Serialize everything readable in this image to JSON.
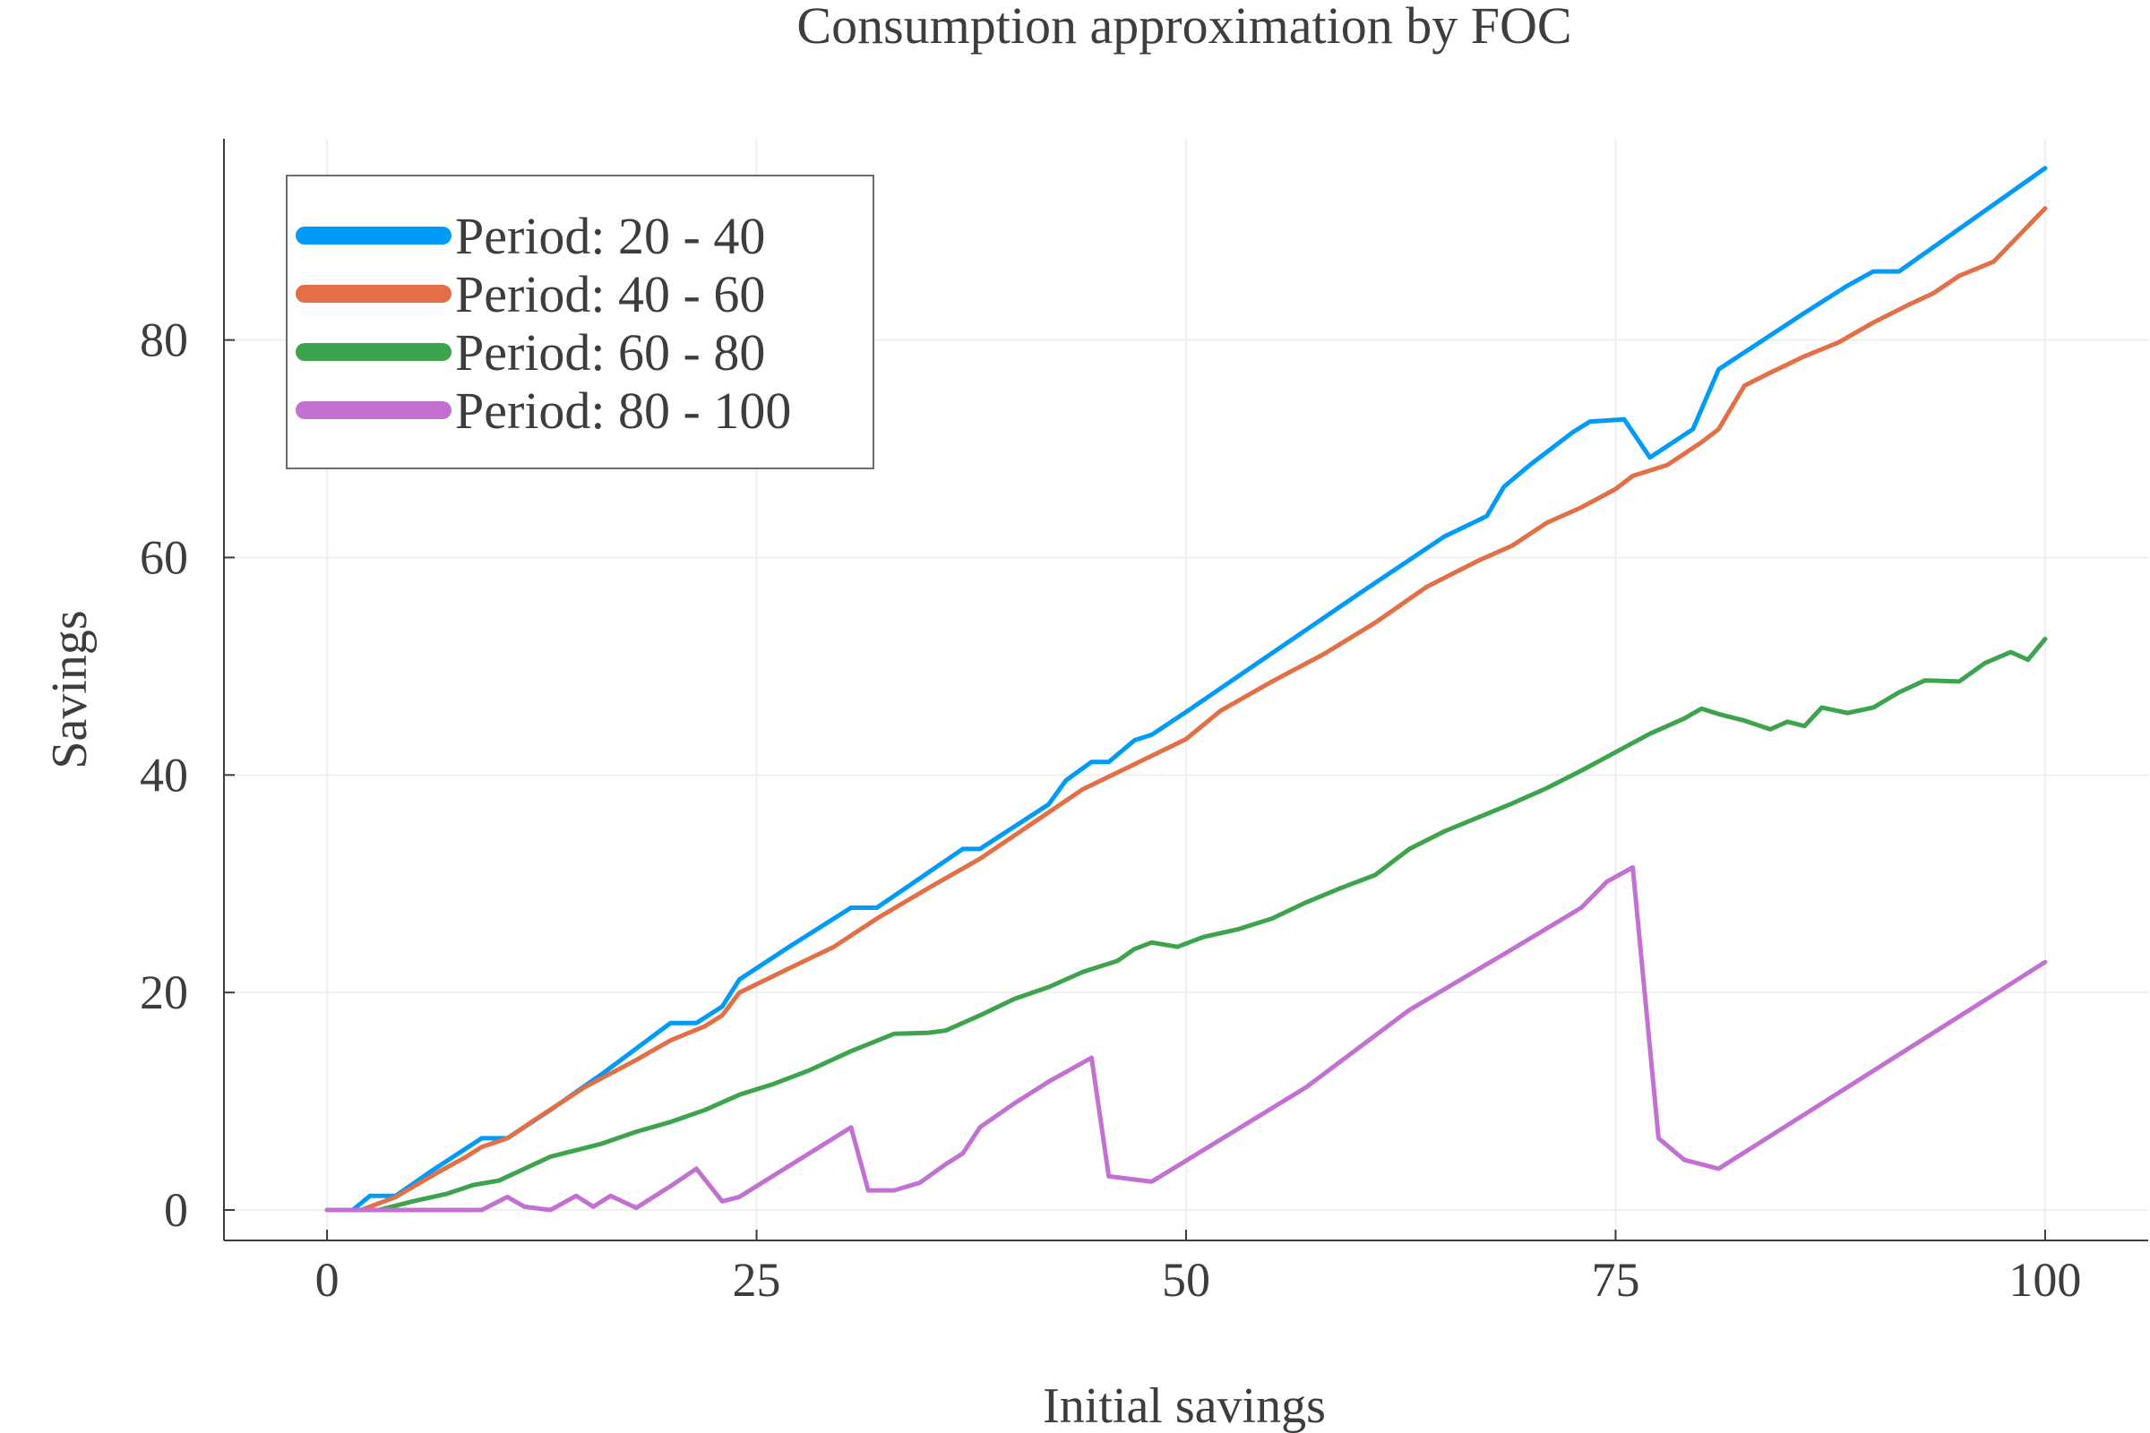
{
  "chart_data": {
    "type": "line",
    "title": "Consumption approximation by FOC",
    "xlabel": "Initial savings",
    "ylabel": "Savings",
    "xlim": [
      -6,
      106
    ],
    "ylim": [
      -2.8,
      98.5
    ],
    "x_ticks": [
      0,
      25,
      50,
      75,
      100
    ],
    "x_tick_labels": [
      "0",
      "25",
      "50",
      "75",
      "100"
    ],
    "y_ticks": [
      0,
      20,
      40,
      60,
      80
    ],
    "y_tick_labels": [
      "0",
      "20",
      "40",
      "60",
      "80"
    ],
    "grid": true,
    "legend_position": "top-left",
    "series": [
      {
        "name": "Period: 20 - 40",
        "color": "#009af9",
        "x": [
          0,
          1.5,
          2.5,
          4,
          6,
          9,
          10.5,
          13,
          16,
          20,
          21.5,
          23,
          24,
          27,
          30.5,
          32,
          37,
          38,
          42,
          43,
          44.5,
          45.5,
          47,
          48,
          50,
          55,
          60,
          65,
          67.5,
          68.5,
          70,
          72.5,
          73.5,
          75.5,
          77,
          79.5,
          81,
          86,
          88.5,
          90,
          91.5,
          100
        ],
        "y": [
          0,
          0,
          1.3,
          1.3,
          3.5,
          6.6,
          6.6,
          9.2,
          12.5,
          17.2,
          17.2,
          18.7,
          21.2,
          24.3,
          27.8,
          27.8,
          33.2,
          33.2,
          37.3,
          39.5,
          41.2,
          41.2,
          43.2,
          43.7,
          45.8,
          51.2,
          56.6,
          61.9,
          63.8,
          66.5,
          68.5,
          71.5,
          72.5,
          72.7,
          69.2,
          71.8,
          77.3,
          82.5,
          85.0,
          86.3,
          86.3,
          95.8
        ]
      },
      {
        "name": "Period: 40 - 60",
        "color": "#e26f46",
        "x": [
          0,
          2,
          4,
          6.5,
          8,
          9,
          10.5,
          12,
          15,
          18,
          20,
          22,
          23,
          24,
          27,
          29.5,
          32,
          35,
          38,
          41,
          44,
          47,
          50,
          52,
          55,
          58,
          61,
          64,
          67,
          69,
          71,
          73,
          75,
          76,
          78,
          80,
          81,
          82.5,
          84,
          86,
          88,
          90,
          92,
          93.5,
          95,
          97,
          100
        ],
        "y": [
          0,
          0,
          1.2,
          3.5,
          4.8,
          5.8,
          6.6,
          8.2,
          11.3,
          13.8,
          15.6,
          16.9,
          17.9,
          20.0,
          22.3,
          24.2,
          26.8,
          29.6,
          32.3,
          35.5,
          38.7,
          41.0,
          43.3,
          45.9,
          48.6,
          51.1,
          54.0,
          57.3,
          59.7,
          61.1,
          63.2,
          64.6,
          66.3,
          67.5,
          68.5,
          70.6,
          71.8,
          75.8,
          77.0,
          78.5,
          79.8,
          81.6,
          83.2,
          84.3,
          85.9,
          87.2,
          92.1
        ]
      },
      {
        "name": "Period: 60 - 80",
        "color": "#3da44d",
        "x": [
          0,
          3,
          5,
          7,
          8.5,
          10,
          13,
          16,
          18,
          20,
          22,
          24,
          26,
          28,
          30.5,
          33,
          35,
          36,
          38,
          40,
          42,
          44,
          46,
          47,
          48,
          49.5,
          51,
          53,
          55,
          57,
          59,
          61,
          63,
          65,
          67,
          69,
          71,
          73,
          75,
          77,
          79,
          80,
          81,
          82.5,
          84,
          85,
          86,
          87,
          88.5,
          90,
          91.5,
          93,
          95,
          96.5,
          98,
          99,
          100
        ],
        "y": [
          0,
          0,
          0.8,
          1.5,
          2.3,
          2.7,
          4.9,
          6.1,
          7.2,
          8.1,
          9.2,
          10.6,
          11.6,
          12.8,
          14.6,
          16.2,
          16.3,
          16.5,
          17.9,
          19.4,
          20.5,
          21.9,
          22.9,
          24.0,
          24.6,
          24.2,
          25.1,
          25.8,
          26.8,
          28.3,
          29.6,
          30.8,
          33.2,
          34.8,
          36.1,
          37.4,
          38.8,
          40.4,
          42.1,
          43.8,
          45.2,
          46.1,
          45.6,
          45.0,
          44.2,
          44.9,
          44.5,
          46.2,
          45.7,
          46.2,
          47.6,
          48.7,
          48.6,
          50.3,
          51.3,
          50.6,
          52.5
        ]
      },
      {
        "name": "Period: 80 - 100",
        "color": "#c271d2",
        "x": [
          0,
          9,
          10.5,
          11.5,
          13,
          14.5,
          15.5,
          16.5,
          18,
          19,
          20,
          21.5,
          23,
          24,
          30.5,
          31.5,
          33,
          34.5,
          36,
          37,
          38,
          40,
          42,
          44.5,
          45.5,
          48,
          57,
          63,
          69,
          73,
          74.5,
          76,
          77.5,
          79,
          81,
          100
        ],
        "y": [
          0,
          0,
          1.2,
          0.3,
          0,
          1.3,
          0.3,
          1.3,
          0.2,
          1.2,
          2.2,
          3.8,
          0.8,
          1.2,
          7.6,
          1.8,
          1.8,
          2.5,
          4.2,
          5.2,
          7.6,
          9.8,
          11.8,
          14.0,
          3.1,
          2.6,
          11.3,
          18.4,
          24.0,
          27.8,
          30.2,
          31.5,
          6.6,
          4.6,
          3.8,
          22.8
        ]
      }
    ]
  }
}
